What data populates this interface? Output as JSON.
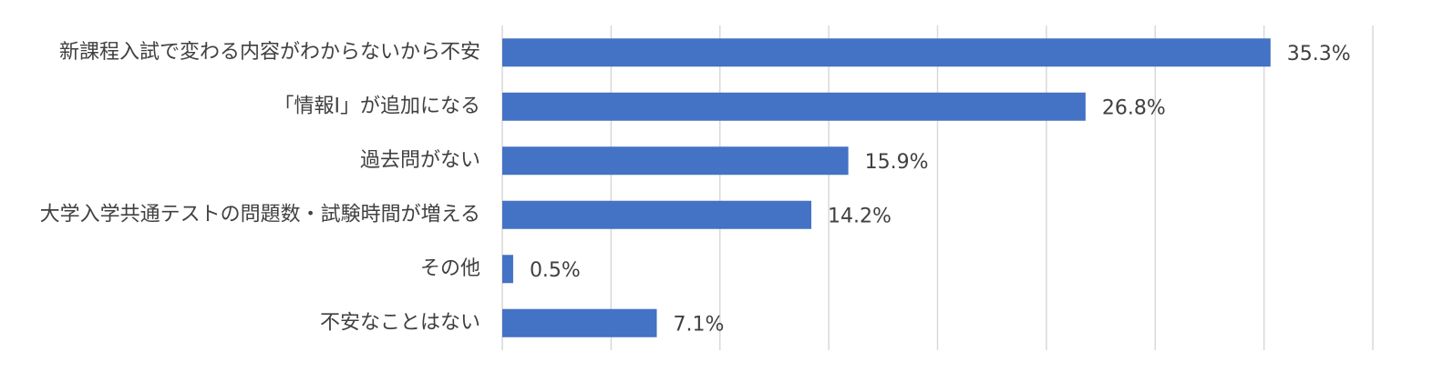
{
  "chart_data": {
    "type": "hbar",
    "categories": [
      "新課程入試で変わる内容がわからないから不安",
      "「情報Ⅰ」が追加になる",
      "過去問がない",
      "大学入学共通テストの問題数・試験時間が増える",
      "その他",
      "不安なことはない"
    ],
    "values": [
      35.3,
      26.8,
      15.9,
      14.2,
      0.5,
      7.1
    ],
    "value_labels": [
      "35.3%",
      "26.8%",
      "15.9%",
      "14.2%",
      "0.5%",
      "7.1%"
    ],
    "color": "#4472c4",
    "xlim": [
      0,
      40
    ],
    "xticks": [
      0,
      5,
      10,
      15,
      20,
      25,
      30,
      35,
      40
    ],
    "grid": true
  }
}
